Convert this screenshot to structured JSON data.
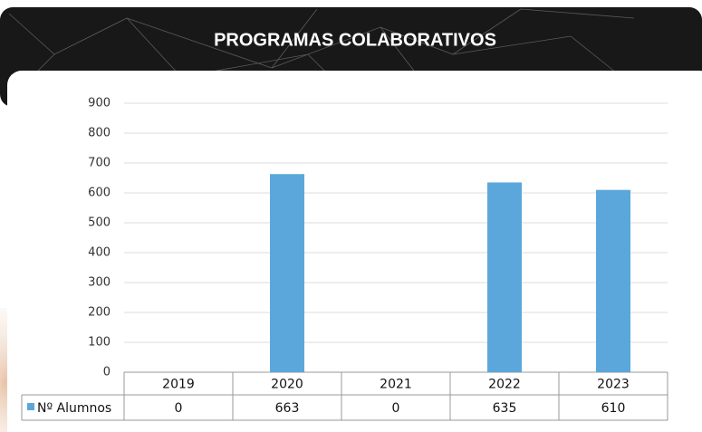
{
  "chart_data": {
    "type": "bar",
    "title": "PROGRAMAS COLABORATIVOS",
    "categories": [
      "2019",
      "2020",
      "2021",
      "2022",
      "2023"
    ],
    "series": [
      {
        "name": "Nº Alumnos",
        "color": "#5ba7dc",
        "values": [
          0,
          663,
          0,
          635,
          610
        ]
      }
    ],
    "ylim": [
      0,
      900
    ],
    "yticks": [
      0,
      100,
      200,
      300,
      400,
      500,
      600,
      700,
      800,
      900
    ],
    "grid": true
  }
}
